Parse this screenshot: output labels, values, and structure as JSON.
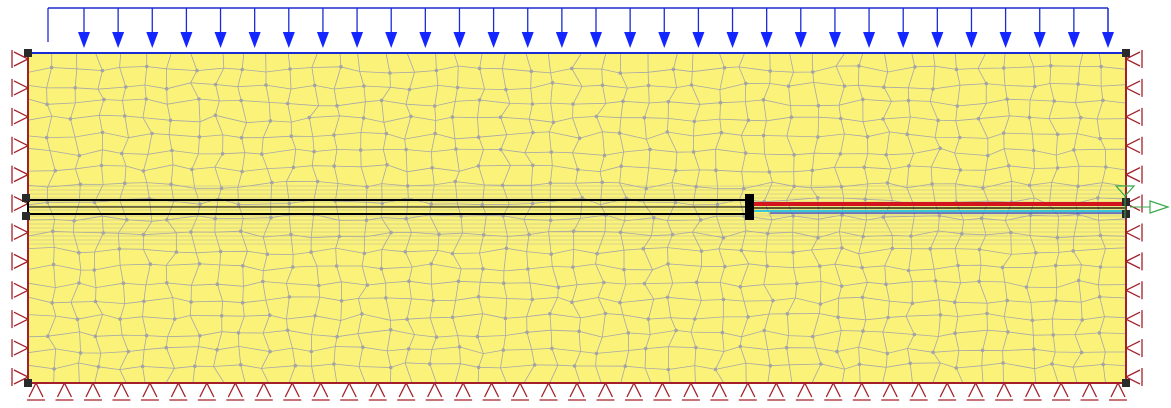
{
  "model": {
    "kind": "finite-element-mesh",
    "load_arrow_count": 31,
    "mesh_columns": 46,
    "mesh_rows": 20,
    "roller_supports_side_count": 12,
    "roller_supports_bottom_count": 39
  },
  "colors": {
    "background": "#ffffff",
    "soil_fill": "#fbf27a",
    "mesh_line": "#a7a7a7",
    "mesh_node": "#a4a4a4",
    "boundary": "#a3202a",
    "load": "#1426ff",
    "load_line": "#1b2bd4",
    "support": "#a3202a",
    "anchor_bar": "#000000",
    "anchor_red": "#d3141c",
    "anchor_cyan": "#37c7d4",
    "anchor_blue": "#2b3bd8",
    "marker_green": "#3aa84b",
    "corner_node": "#2a2a2a"
  },
  "icons": {
    "load": "down-arrow-icon",
    "support": "roller-support-icon",
    "marker": "triangle-marker-icon"
  }
}
